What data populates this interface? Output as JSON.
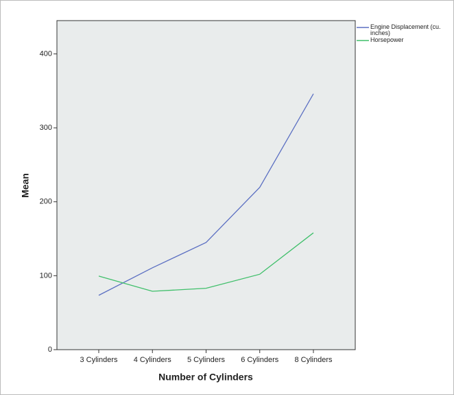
{
  "chart_data": {
    "type": "line",
    "x_label": "Number of Cylinders",
    "y_label": "Mean",
    "categories": [
      "3 Cylinders",
      "4 Cylinders",
      "5 Cylinders",
      "6 Cylinders",
      "8 Cylinders"
    ],
    "series": [
      {
        "name": "Engine Displacement (cu. inches)",
        "color": "#5b6fc2",
        "values": [
          73.5,
          110.7,
          145,
          219.5,
          346
        ]
      },
      {
        "name": "Horsepower",
        "color": "#3fbf6a",
        "values": [
          99.5,
          79,
          83,
          102,
          158
        ]
      }
    ],
    "ylim": [
      0,
      445
    ],
    "yticks": [
      0,
      100,
      200,
      300,
      400
    ],
    "grid": false
  }
}
